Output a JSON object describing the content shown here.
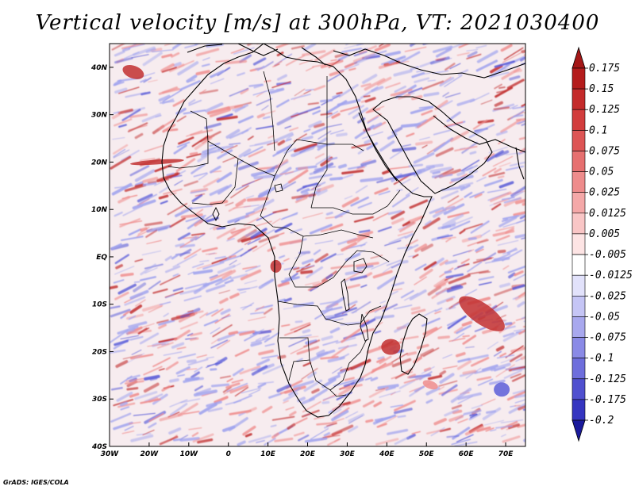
{
  "title": "Vertical velocity [m/s] at 300hPa, VT: 2021030400",
  "credit": "GrADS: IGES/COLA",
  "map": {
    "lon_range": [
      -30,
      75
    ],
    "lat_range": [
      -40,
      45
    ],
    "lon_ticks": [
      {
        "value": -30,
        "label": "30W"
      },
      {
        "value": -20,
        "label": "20W"
      },
      {
        "value": -10,
        "label": "10W"
      },
      {
        "value": 0,
        "label": "0"
      },
      {
        "value": 10,
        "label": "10E"
      },
      {
        "value": 20,
        "label": "20E"
      },
      {
        "value": 30,
        "label": "30E"
      },
      {
        "value": 40,
        "label": "40E"
      },
      {
        "value": 50,
        "label": "50E"
      },
      {
        "value": 60,
        "label": "60E"
      },
      {
        "value": 70,
        "label": "70E"
      }
    ],
    "lat_ticks": [
      {
        "value": 40,
        "label": "40N"
      },
      {
        "value": 30,
        "label": "30N"
      },
      {
        "value": 20,
        "label": "20N"
      },
      {
        "value": 10,
        "label": "10N"
      },
      {
        "value": 0,
        "label": "EQ"
      },
      {
        "value": -10,
        "label": "10S"
      },
      {
        "value": -20,
        "label": "20S"
      },
      {
        "value": -30,
        "label": "30S"
      },
      {
        "value": -40,
        "label": "40S"
      }
    ]
  },
  "colorbar": {
    "levels": [
      {
        "label": "0.175",
        "color": "#b41c1c"
      },
      {
        "label": "0.15",
        "color": "#c42b2b"
      },
      {
        "label": "0.125",
        "color": "#d23d3d"
      },
      {
        "label": "0.1",
        "color": "#dd5555"
      },
      {
        "label": "0.075",
        "color": "#e67070"
      },
      {
        "label": "0.05",
        "color": "#ee8c8c"
      },
      {
        "label": "0.025",
        "color": "#f4a8a8"
      },
      {
        "label": "0.0125",
        "color": "#f9c6c6"
      },
      {
        "label": "0.005",
        "color": "#fde4e4"
      },
      {
        "label": "-0.005",
        "color": "#ffffff"
      },
      {
        "label": "-0.0125",
        "color": "#e2e2fb"
      },
      {
        "label": "-0.025",
        "color": "#c5c5f5"
      },
      {
        "label": "-0.05",
        "color": "#a8a8ee"
      },
      {
        "label": "-0.075",
        "color": "#8a8ae6"
      },
      {
        "label": "-0.1",
        "color": "#6e6edc"
      },
      {
        "label": "-0.125",
        "color": "#5050cf"
      },
      {
        "label": "-0.175",
        "color": "#3535c0"
      },
      {
        "label": "-0.2",
        "color": "#2222b0"
      }
    ],
    "under_color": "#1a1a9c",
    "over_color": "#a51717"
  },
  "field_colors": {
    "ascent": "#ef8d8d",
    "descent": "#a0a3ee",
    "strong_ascent": "#c23030",
    "strong_descent": "#5c5ed8",
    "background": "#f7ecef"
  }
}
